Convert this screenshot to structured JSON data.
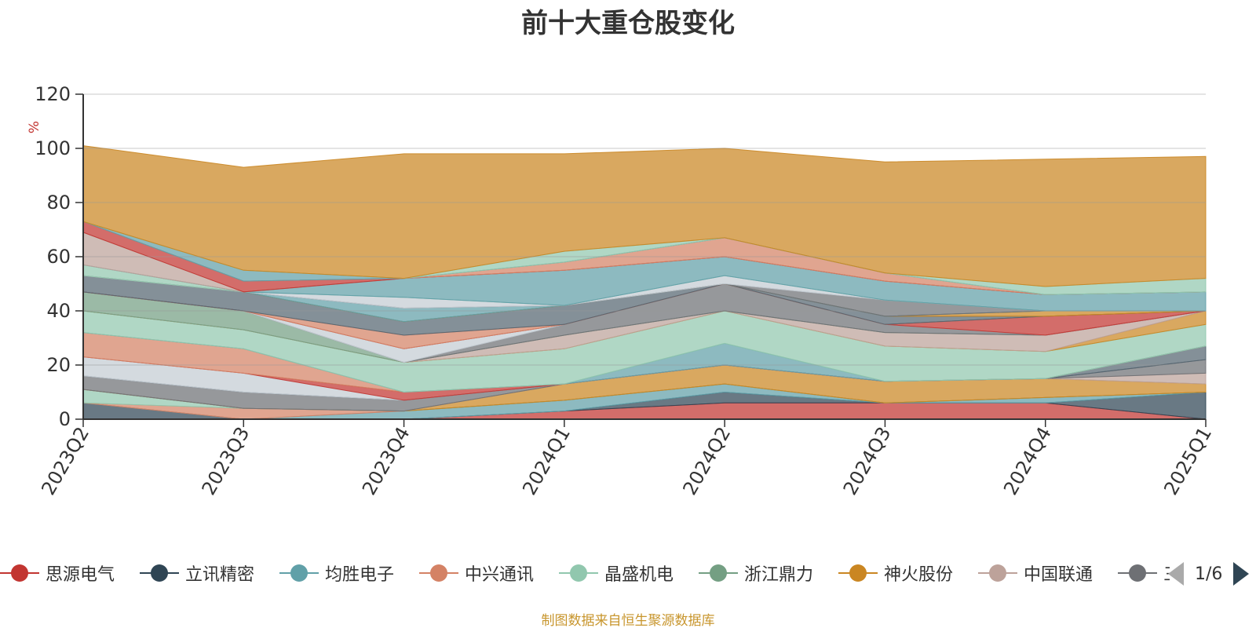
{
  "title": "前十大重仓股变化",
  "footer": "制图数据来自恒生聚源数据库",
  "pager": {
    "text": "1/6"
  },
  "chart_data": {
    "type": "area",
    "stacked": true,
    "title": "前十大重仓股变化",
    "ylabel": "%",
    "ylim": [
      0,
      120
    ],
    "yticks": [
      0,
      20,
      40,
      60,
      80,
      100,
      120
    ],
    "grid": true,
    "legend_position": "bottom",
    "categories": [
      "2023Q2",
      "2023Q3",
      "2023Q4",
      "2024Q1",
      "2024Q2",
      "2024Q3",
      "2024Q4",
      "2025Q1"
    ],
    "series": [
      {
        "name": "思源电气",
        "color": "#c23531",
        "values": [
          0,
          0,
          0,
          3,
          6,
          6,
          6,
          0
        ]
      },
      {
        "name": "立讯精密",
        "color": "#2f4554",
        "values": [
          6,
          0,
          0,
          0,
          4,
          0,
          0,
          10
        ]
      },
      {
        "name": "均胜电子",
        "color": "#61a0a8",
        "values": [
          0,
          0,
          3,
          4,
          3,
          0,
          2,
          0
        ]
      },
      {
        "name": "中兴通讯",
        "color": "#d48265",
        "values": [
          0,
          4,
          0,
          0,
          0,
          0,
          0,
          0
        ]
      },
      {
        "name": "晶盛机电",
        "color": "#91c7ae",
        "values": [
          5,
          0,
          0,
          0,
          0,
          0,
          0,
          0
        ]
      },
      {
        "name": "浙江鼎力",
        "color": "#749f83",
        "values": [
          0,
          0,
          0,
          0,
          0,
          0,
          0,
          0
        ]
      },
      {
        "name": "神火股份",
        "color": "#ca8622",
        "values": [
          0,
          0,
          0,
          6,
          7,
          8,
          7,
          3
        ]
      },
      {
        "name": "中国联通",
        "color": "#bda29a",
        "values": [
          0,
          0,
          0,
          0,
          0,
          0,
          0,
          4
        ]
      },
      {
        "color": "#6e7074",
        "values": [
          5,
          6,
          4,
          0,
          0,
          0,
          0,
          5
        ]
      },
      {
        "color": "#546570",
        "values": [
          0,
          0,
          0,
          0,
          0,
          0,
          0,
          5
        ]
      },
      {
        "color": "#c4ccd3",
        "values": [
          7,
          7,
          0,
          0,
          0,
          0,
          0,
          0
        ]
      },
      {
        "color": "#c23531",
        "values": [
          0,
          0,
          3,
          0,
          0,
          0,
          0,
          0
        ]
      },
      {
        "color": "#d48265",
        "values": [
          9,
          9,
          0,
          0,
          0,
          0,
          0,
          0
        ]
      },
      {
        "color": "#61a0a8",
        "values": [
          0,
          0,
          0,
          0,
          8,
          0,
          0,
          0
        ]
      },
      {
        "color": "#91c7ae",
        "values": [
          8,
          7,
          11,
          13,
          12,
          13,
          10,
          8
        ]
      },
      {
        "color": "#ca8622",
        "values": [
          0,
          0,
          0,
          0,
          0,
          0,
          0,
          5
        ]
      },
      {
        "color": "#bda29a",
        "values": [
          0,
          0,
          0,
          5,
          0,
          5,
          6,
          0
        ]
      },
      {
        "color": "#749f83",
        "values": [
          7,
          7,
          0,
          0,
          0,
          0,
          0,
          0
        ]
      },
      {
        "color": "#6e7074",
        "values": [
          0,
          0,
          0,
          4,
          10,
          3,
          0,
          0
        ]
      },
      {
        "color": "#c4ccd3",
        "values": [
          0,
          0,
          5,
          0,
          0,
          0,
          0,
          0
        ]
      },
      {
        "color": "#c23531",
        "values": [
          0,
          0,
          0,
          0,
          0,
          0,
          7,
          0
        ]
      },
      {
        "color": "#d48265",
        "values": [
          0,
          0,
          5,
          0,
          0,
          0,
          0,
          0
        ]
      },
      {
        "color": "#546570",
        "values": [
          6,
          7,
          5,
          7,
          0,
          3,
          0,
          0
        ]
      },
      {
        "color": "#ca8622",
        "values": [
          0,
          0,
          0,
          0,
          0,
          0,
          2,
          0
        ]
      },
      {
        "color": "#61a0a8",
        "values": [
          0,
          0,
          5,
          0,
          0,
          0,
          0,
          0
        ]
      },
      {
        "color": "#6e7074",
        "values": [
          0,
          0,
          0,
          0,
          0,
          6,
          0,
          0
        ]
      },
      {
        "color": "#c4ccd3",
        "values": [
          0,
          0,
          4,
          0,
          3,
          0,
          0,
          0
        ]
      },
      {
        "color": "#91c7ae",
        "values": [
          4,
          0,
          0,
          0,
          0,
          0,
          0,
          0
        ]
      },
      {
        "color": "#61a0a8",
        "values": [
          0,
          0,
          7,
          13,
          7,
          7,
          6,
          7
        ]
      },
      {
        "color": "#bda29a",
        "values": [
          12,
          0,
          0,
          0,
          0,
          0,
          0,
          0
        ]
      },
      {
        "color": "#c23531",
        "values": [
          4,
          4,
          0,
          0,
          0,
          0,
          0,
          0
        ]
      },
      {
        "color": "#d48265",
        "values": [
          0,
          0,
          0,
          3,
          7,
          3,
          0,
          0
        ]
      },
      {
        "color": "#61a0a8",
        "values": [
          0,
          4,
          0,
          0,
          0,
          0,
          0,
          0
        ]
      },
      {
        "color": "#91c7ae",
        "values": [
          0,
          0,
          0,
          4,
          0,
          0,
          3,
          5
        ]
      },
      {
        "color": "#ca8622",
        "values": [
          28,
          38,
          46,
          36,
          33,
          41,
          47,
          45
        ]
      }
    ]
  },
  "legend": {
    "items": [
      {
        "name": "思源电气",
        "color": "#c23531"
      },
      {
        "name": "立讯精密",
        "color": "#2f4554"
      },
      {
        "name": "均胜电子",
        "color": "#61a0a8"
      },
      {
        "name": "中兴通讯",
        "color": "#d48265"
      },
      {
        "name": "晶盛机电",
        "color": "#91c7ae"
      },
      {
        "name": "浙江鼎力",
        "color": "#749f83"
      },
      {
        "name": "神火股份",
        "color": "#ca8622"
      },
      {
        "name": "中国联通",
        "color": "#bda29a"
      },
      {
        "name": "三",
        "color": "#6e7074"
      }
    ]
  }
}
